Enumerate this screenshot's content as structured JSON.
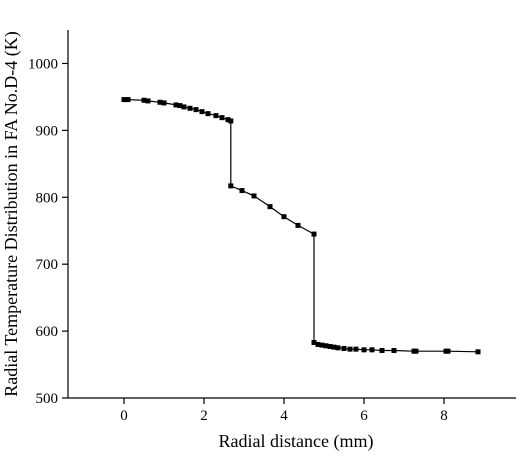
{
  "chart_data": {
    "type": "line",
    "title": "",
    "xlabel": "Radial distance (mm)",
    "ylabel": "Radial Temperature Distribution in FA No.D-4 (K)",
    "xlim": [
      -1.4,
      9.8
    ],
    "ylim": [
      500,
      1050
    ],
    "x_ticks": [
      0,
      2,
      4,
      6,
      8
    ],
    "x_tick_labels": [
      "0",
      "2",
      "4",
      "6",
      "8"
    ],
    "y_ticks": [
      500,
      600,
      700,
      800,
      900,
      1000
    ],
    "y_tick_labels": [
      "500",
      "600",
      "700",
      "800",
      "900",
      "1000"
    ],
    "grid": false,
    "legend": "none",
    "colors": {
      "line": "#000000",
      "marker": "#000000",
      "axis": "#000000"
    },
    "series": [
      {
        "x": [
          0.0,
          0.1,
          0.5,
          0.6,
          0.9,
          1.0,
          1.3,
          1.4,
          1.5,
          1.65,
          1.8,
          1.95,
          2.1,
          2.3,
          2.45,
          2.6,
          2.67,
          2.67,
          2.95,
          3.25,
          3.65,
          4.0,
          4.35,
          4.75,
          4.75,
          4.85,
          4.95,
          5.05,
          5.15,
          5.25,
          5.35,
          5.5,
          5.65,
          5.8,
          6.0,
          6.2,
          6.45,
          6.75,
          7.25,
          7.3,
          8.05,
          8.1,
          8.85
        ],
        "y": [
          946,
          946,
          945,
          944,
          942,
          941,
          938,
          937,
          935,
          933,
          931,
          928,
          925,
          922,
          919,
          916,
          914,
          817,
          810,
          802,
          786,
          771,
          758,
          745,
          583,
          580,
          579,
          578,
          577,
          576,
          575,
          574,
          573,
          573,
          572,
          572,
          571,
          571,
          570,
          570,
          570,
          570,
          569
        ]
      }
    ]
  }
}
